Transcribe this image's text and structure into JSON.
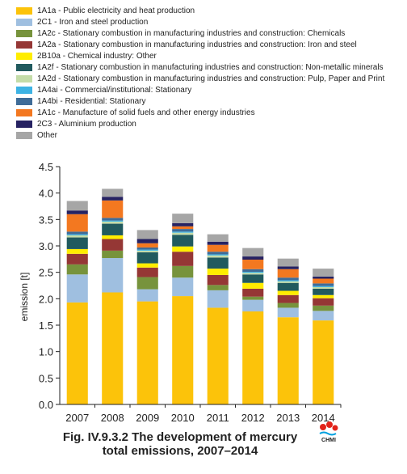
{
  "chart_data": {
    "type": "bar",
    "stacked": true,
    "title": "",
    "xlabel": "",
    "ylabel": "emission [t]",
    "ylim": [
      0,
      4.5
    ],
    "yticks": [
      "0.0",
      "0.5",
      "1.0",
      "1.5",
      "2.0",
      "2.5",
      "3.0",
      "3.5",
      "4.0",
      "4.5"
    ],
    "legend_position": "top",
    "grid": false,
    "categories": [
      "2007",
      "2008",
      "2009",
      "2010",
      "2011",
      "2012",
      "2013",
      "2014"
    ],
    "series": [
      {
        "name": "1A1a - Public electricity and heat production",
        "color": "#fcc30a",
        "values": [
          1.93,
          2.12,
          1.95,
          2.05,
          1.83,
          1.76,
          1.65,
          1.59
        ]
      },
      {
        "name": "2C1 - Iron and steel production",
        "color": "#9fbfe0",
        "values": [
          0.53,
          0.65,
          0.23,
          0.35,
          0.33,
          0.22,
          0.18,
          0.18
        ]
      },
      {
        "name": "1A2c - Stationary combustion in manufacturing industries and construction: Chemicals",
        "color": "#77933c",
        "values": [
          0.19,
          0.14,
          0.23,
          0.22,
          0.1,
          0.06,
          0.09,
          0.1
        ]
      },
      {
        "name": "1A2a - Stationary combustion in manufacturing industries and construction: Iron and steel",
        "color": "#953735",
        "values": [
          0.2,
          0.22,
          0.18,
          0.27,
          0.19,
          0.15,
          0.15,
          0.14
        ]
      },
      {
        "name": "2B10a - Chemical industry: Other",
        "color": "#ffed00",
        "values": [
          0.09,
          0.07,
          0.08,
          0.1,
          0.12,
          0.11,
          0.08,
          0.06
        ]
      },
      {
        "name": "1A2f - Stationary combustion in manufacturing industries and construction: Non-metallic minerals",
        "color": "#215a5e",
        "values": [
          0.22,
          0.22,
          0.21,
          0.22,
          0.21,
          0.16,
          0.15,
          0.12
        ]
      },
      {
        "name": "1A2d - Stationary combustion in manufacturing industries and construction: Pulp, Paper and Print",
        "color": "#c4dca8",
        "values": [
          0.04,
          0.04,
          0.03,
          0.04,
          0.04,
          0.03,
          0.03,
          0.03
        ]
      },
      {
        "name": "1A4ai - Commercial/institutional: Stationary",
        "color": "#3db3e4",
        "values": [
          0.02,
          0.02,
          0.02,
          0.02,
          0.02,
          0.02,
          0.02,
          0.02
        ]
      },
      {
        "name": "1A4bi - Residential: Stationary",
        "color": "#3f6c98",
        "values": [
          0.05,
          0.05,
          0.04,
          0.05,
          0.05,
          0.05,
          0.05,
          0.05
        ]
      },
      {
        "name": "1A1c - Manufacture of solid fuels and other energy industries",
        "color": "#f37820",
        "values": [
          0.33,
          0.33,
          0.08,
          0.05,
          0.13,
          0.18,
          0.16,
          0.09
        ]
      },
      {
        "name": "2C3 - Aluminium production",
        "color": "#262262",
        "values": [
          0.07,
          0.07,
          0.08,
          0.06,
          0.06,
          0.06,
          0.05,
          0.04
        ]
      },
      {
        "name": "Other",
        "color": "#a6a6a6",
        "values": [
          0.18,
          0.15,
          0.17,
          0.18,
          0.14,
          0.16,
          0.15,
          0.15
        ]
      }
    ]
  },
  "caption": {
    "line1": "Fig. IV.9.3.2  The development of mercury",
    "line2": "total emissions, 2007–2014"
  },
  "logo": {
    "text": "CHMI",
    "colors": [
      "#e2231a",
      "#00a0df"
    ]
  }
}
